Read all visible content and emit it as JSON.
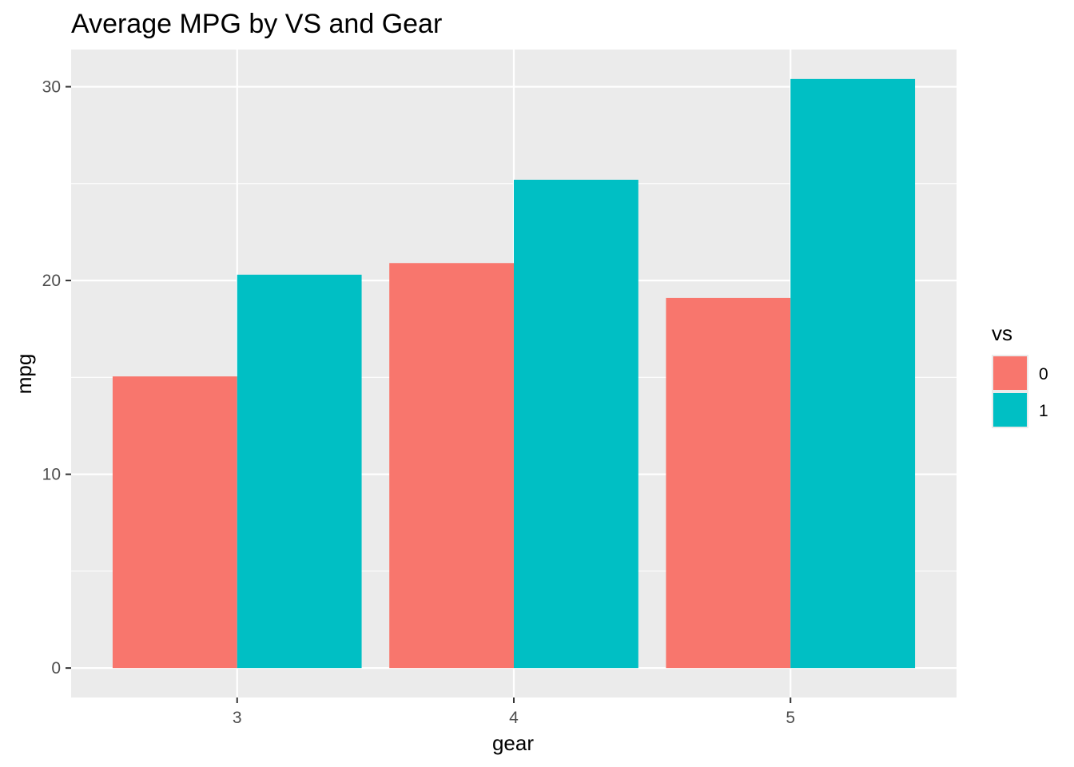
{
  "chart_data": {
    "type": "bar",
    "title": "Average MPG by VS and Gear",
    "xlabel": "gear",
    "ylabel": "mpg",
    "categories": [
      "3",
      "4",
      "5"
    ],
    "series": [
      {
        "name": "0",
        "values": [
          15.05,
          20.9,
          19.1
        ],
        "color": "#F8766D"
      },
      {
        "name": "1",
        "values": [
          20.3,
          25.2,
          30.4
        ],
        "color": "#00BFC4"
      }
    ],
    "ylim": [
      -1.52,
      31.92
    ],
    "yticks": [
      0,
      10,
      20,
      30
    ],
    "grid": true,
    "legend": {
      "title": "vs",
      "position": "right"
    },
    "colors": {
      "panel": "#EBEBEB",
      "grid": "#FFFFFF",
      "tick": "#333333"
    }
  }
}
